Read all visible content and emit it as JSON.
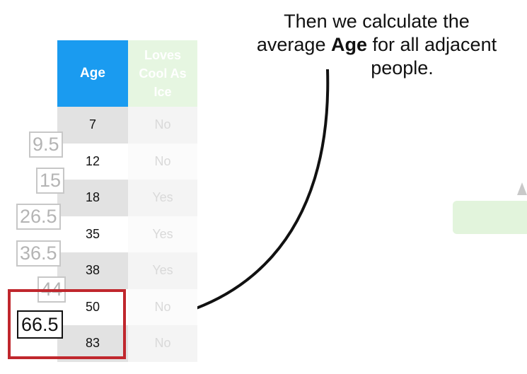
{
  "caption": {
    "line1": "Then we calculate the",
    "line2_pre": "average ",
    "line2_bold": "Age",
    "line2_post": " for all adjacent",
    "line3": "people."
  },
  "table": {
    "headers": {
      "age": "Age",
      "loves": [
        "Loves",
        "Cool As",
        "Ice"
      ]
    },
    "rows": [
      {
        "age": "7",
        "loves": "No"
      },
      {
        "age": "12",
        "loves": "No"
      },
      {
        "age": "18",
        "loves": "Yes"
      },
      {
        "age": "35",
        "loves": "Yes"
      },
      {
        "age": "38",
        "loves": "Yes"
      },
      {
        "age": "50",
        "loves": "No"
      },
      {
        "age": "83",
        "loves": "No"
      }
    ]
  },
  "averages": [
    "9.5",
    "15",
    "26.5",
    "36.5",
    "44"
  ],
  "highlighted_average": "66.5",
  "colors": {
    "age_header": "#1a9bf0",
    "loves_header": "#e6f6e1",
    "highlight_box": "#c0272d"
  }
}
